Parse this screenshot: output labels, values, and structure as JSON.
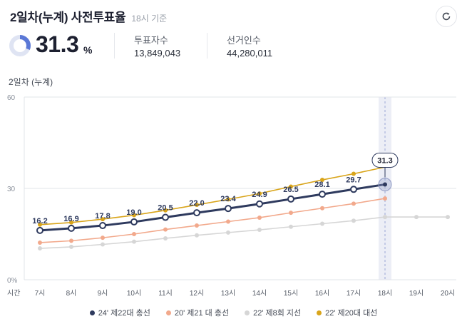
{
  "header": {
    "title": "2일차(누계) 사전투표율",
    "time_note": "18시 기준"
  },
  "summary": {
    "rate": "31.3",
    "unit": "%",
    "rate_value": 31.3,
    "voters_label": "투표자수",
    "voters_value": "13,849,043",
    "electorate_label": "선거인수",
    "electorate_value": "44,280,011"
  },
  "chart_title": "2일차 (누계)",
  "colors": {
    "s24": "#2e3a5e",
    "s20": "#f2a98c",
    "s22local": "#d6d6d6",
    "s22pres": "#d9a51b",
    "highlight": "#eceef6",
    "grid": "#e2e4e9"
  },
  "chart_data": {
    "type": "line",
    "x_axis_name": "시간",
    "categories": [
      "7시",
      "8시",
      "9시",
      "10시",
      "11시",
      "12시",
      "13시",
      "14시",
      "15시",
      "16시",
      "17시",
      "18시",
      "19시",
      "20시"
    ],
    "y_ticks": [
      "60",
      "30",
      "0%"
    ],
    "ylim": [
      0,
      60
    ],
    "highlight_category": "18시",
    "series": [
      {
        "name": "24' 제22대 총선",
        "color_key": "s24",
        "values": [
          16.2,
          16.9,
          17.8,
          19.0,
          20.5,
          22.0,
          23.4,
          24.9,
          26.5,
          28.1,
          29.7,
          31.3,
          null,
          null
        ]
      },
      {
        "name": "20' 제21 대 총선",
        "color_key": "s20",
        "values": [
          12.2,
          12.8,
          13.8,
          15.0,
          16.5,
          17.8,
          19.1,
          20.4,
          22.0,
          23.5,
          25.0,
          26.7,
          null,
          null
        ]
      },
      {
        "name": "22' 제8회 지선",
        "color_key": "s22local",
        "values": [
          10.3,
          10.8,
          11.6,
          12.5,
          13.6,
          14.6,
          15.5,
          16.4,
          17.4,
          18.4,
          19.4,
          20.6,
          20.6,
          20.6
        ]
      },
      {
        "name": "22' 제20대 대선",
        "color_key": "s22pres",
        "values": [
          18.1,
          18.8,
          19.9,
          21.2,
          22.8,
          24.6,
          26.4,
          28.3,
          30.6,
          32.8,
          34.8,
          37.0,
          null,
          null
        ]
      }
    ],
    "data_labels": [
      "16.2",
      "16.9",
      "17.8",
      "19.0",
      "20.5",
      "22.0",
      "23.4",
      "24.9",
      "26.5",
      "28.1",
      "29.7"
    ],
    "callout_label": "31.3"
  }
}
